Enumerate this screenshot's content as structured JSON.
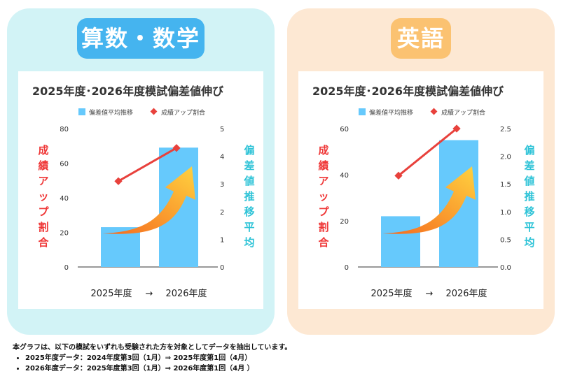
{
  "panels": [
    {
      "heading": "算数・数学"
    },
    {
      "heading": "英語"
    }
  ],
  "notes": {
    "lead": "本グラフは、以下の模試をいずれも受験された方を対象としてデータを抽出しています。",
    "items": [
      "2025年度データ：2024年度第3回（1月）⇒ 2025年度第1回（4月）",
      "2026年度データ：2025年度第3回（1月）⇒ 2026年度第1回（4月 ）"
    ]
  },
  "colors": {
    "bar": "#66c9fc",
    "line": "#e8413c",
    "left_label": "#ef3838",
    "right_label": "#2ec3d7",
    "arrow_start": "#f56a1f",
    "arrow_end": "#ffd23f"
  },
  "chart_data": [
    {
      "type": "bar",
      "title": "2025年度･2026年度模試偏差値伸び",
      "categories": [
        "2025年度",
        "2026年度"
      ],
      "category_arrow": "→",
      "y_left_label": "成績アップ割合",
      "y_right_label": "偏差値推移平均",
      "series": [
        {
          "name": "偏差値平均推移",
          "type": "bar",
          "values": [
            23,
            69
          ]
        },
        {
          "name": "成績アップ割合",
          "type": "line",
          "values": [
            3.1,
            4.3
          ]
        }
      ],
      "left_axis": {
        "ticks": [
          "0",
          "20",
          "40",
          "60",
          "80"
        ],
        "min": 0,
        "max": 80
      },
      "right_axis": {
        "ticks": [
          "0",
          "1",
          "2",
          "3",
          "4",
          "5"
        ],
        "min": 0,
        "max": 5
      },
      "legend": "top"
    },
    {
      "type": "bar",
      "title": "2025年度･2026年度模試偏差値伸び",
      "categories": [
        "2025年度",
        "2026年度"
      ],
      "category_arrow": "→",
      "y_left_label": "成績アップ割合",
      "y_right_label": "偏差値推移平均",
      "series": [
        {
          "name": "偏差値平均推移",
          "type": "bar",
          "values": [
            22,
            55
          ]
        },
        {
          "name": "成績アップ割合",
          "type": "line",
          "values": [
            1.65,
            2.5
          ]
        }
      ],
      "left_axis": {
        "ticks": [
          "0",
          "20",
          "40",
          "60"
        ],
        "min": 0,
        "max": 60
      },
      "right_axis": {
        "ticks": [
          "0.0",
          "0.5",
          "1.0",
          "1.5",
          "2.0",
          "2.5"
        ],
        "min": 0,
        "max": 2.5
      },
      "legend": "top"
    }
  ]
}
